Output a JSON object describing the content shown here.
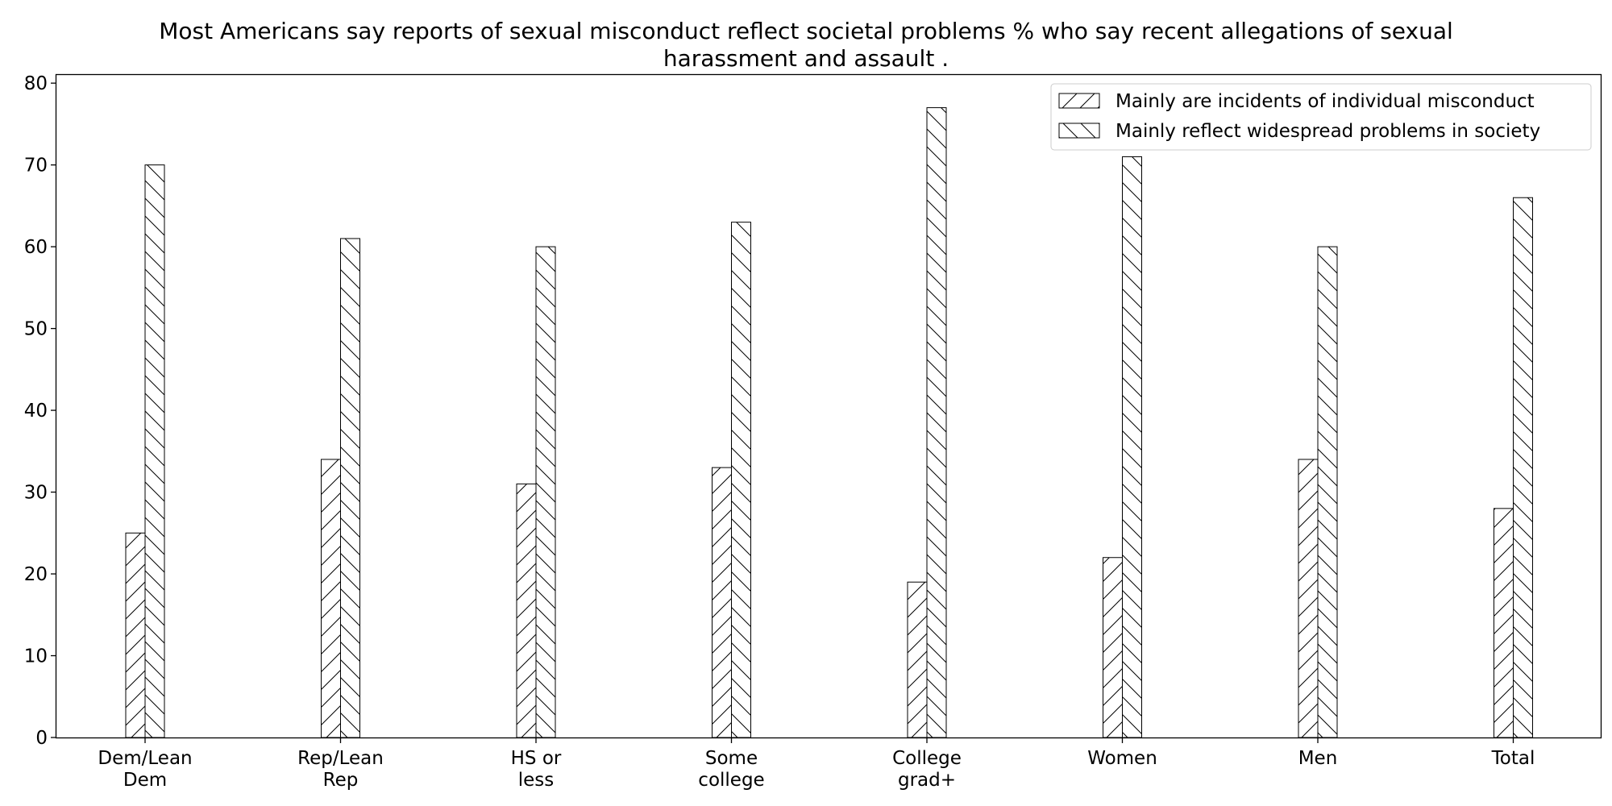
{
  "chart_data": {
    "type": "bar",
    "title": "Most Americans say reports of sexual misconduct reflect societal problems % who say recent allegations of sexual harassment and assault .",
    "xlabel": "",
    "ylabel": "",
    "ylim": [
      0,
      81
    ],
    "yticks": [
      0,
      10,
      20,
      30,
      40,
      50,
      60,
      70,
      80
    ],
    "grid": false,
    "legend_position": "top-right",
    "categories": [
      "Dem/Lean Dem",
      "Rep/Lean Rep",
      "HS or less",
      "Some college",
      "College grad+",
      "Women",
      "Men",
      "Total"
    ],
    "series": [
      {
        "name": "Mainly are incidents of individual misconduct",
        "hatch": "forward-diagonal",
        "values": [
          25,
          34,
          31,
          33,
          19,
          22,
          34,
          28
        ]
      },
      {
        "name": "Mainly reflect widespread problems in society",
        "hatch": "back-diagonal",
        "values": [
          70,
          61,
          60,
          63,
          77,
          71,
          60,
          66
        ]
      }
    ],
    "colors": {
      "bar_fill": "#ffffff",
      "bar_edge": "#000000",
      "hatch": "#000000",
      "axis": "#000000",
      "text": "#000000"
    }
  }
}
